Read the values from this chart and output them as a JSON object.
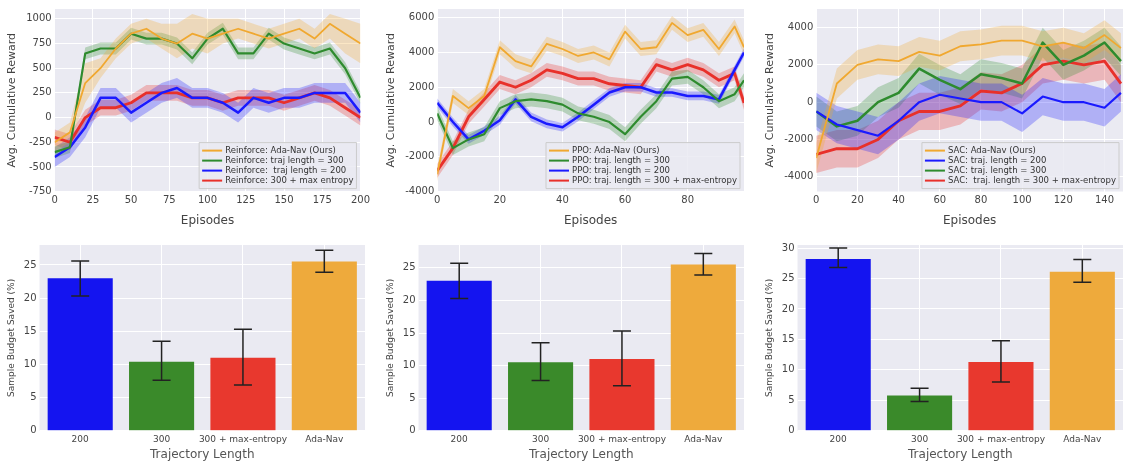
{
  "chart_data": [
    {
      "type": "line",
      "xlabel": "Episodes",
      "ylabel": "Avg. Cumulative Reward",
      "x": [
        0,
        10,
        20,
        30,
        40,
        50,
        60,
        70,
        80,
        90,
        100,
        110,
        120,
        130,
        140,
        150,
        160,
        170,
        180,
        190,
        200
      ],
      "xlim": [
        0,
        200
      ],
      "xticks": [
        0,
        25,
        50,
        75,
        100,
        125,
        150,
        175,
        200
      ],
      "ylim": [
        -750,
        1100
      ],
      "yticks": [
        -750,
        -500,
        -250,
        0,
        250,
        500,
        750,
        1000
      ],
      "grid": true,
      "legend": "bottom right",
      "series": [
        {
          "name": "Reinforce: Ada-Nav (Ours)",
          "color": "#f0a830",
          "values": [
            -250,
            -150,
            350,
            500,
            700,
            850,
            900,
            800,
            750,
            850,
            800,
            850,
            900,
            850,
            800,
            850,
            900,
            800,
            950,
            850,
            750
          ],
          "lower": [
            -350,
            -250,
            150,
            400,
            600,
            750,
            800,
            700,
            600,
            700,
            650,
            750,
            800,
            750,
            700,
            750,
            800,
            700,
            800,
            650,
            550
          ],
          "upper": [
            -150,
            -50,
            550,
            600,
            800,
            950,
            1000,
            950,
            950,
            1050,
            1000,
            1000,
            1000,
            950,
            900,
            950,
            1000,
            900,
            1050,
            1000,
            950
          ]
        },
        {
          "name": "Reinforce: traj length = 300",
          "color": "#2e8b2e",
          "values": [
            -350,
            -300,
            650,
            700,
            700,
            850,
            800,
            800,
            750,
            600,
            800,
            900,
            650,
            650,
            850,
            750,
            700,
            650,
            700,
            500,
            200
          ],
          "lower": [
            -410,
            -360,
            590,
            640,
            640,
            790,
            740,
            740,
            690,
            540,
            740,
            840,
            590,
            590,
            790,
            690,
            640,
            590,
            640,
            440,
            140
          ],
          "upper": [
            -290,
            -240,
            710,
            760,
            760,
            910,
            860,
            860,
            810,
            660,
            860,
            960,
            710,
            710,
            910,
            810,
            760,
            710,
            760,
            560,
            260
          ]
        },
        {
          "name": "Reinforce:  traj length = 200",
          "color": "#1a1aff",
          "values": [
            -400,
            -300,
            -100,
            200,
            200,
            50,
            150,
            250,
            300,
            200,
            200,
            150,
            50,
            200,
            150,
            200,
            200,
            250,
            250,
            250,
            50
          ],
          "lower": [
            -500,
            -400,
            -200,
            100,
            100,
            -50,
            50,
            150,
            200,
            100,
            100,
            50,
            -50,
            100,
            50,
            100,
            100,
            150,
            150,
            150,
            -50
          ],
          "upper": [
            -300,
            -200,
            0,
            300,
            300,
            150,
            250,
            350,
            400,
            300,
            300,
            250,
            150,
            300,
            250,
            300,
            300,
            350,
            350,
            350,
            150
          ]
        },
        {
          "name": "Reinforce: 300 + max entropy",
          "color": "#e8302a",
          "values": [
            -200,
            -250,
            0,
            100,
            100,
            150,
            250,
            250,
            250,
            200,
            200,
            150,
            200,
            200,
            200,
            150,
            200,
            250,
            200,
            100,
            0
          ],
          "lower": [
            -280,
            -330,
            -80,
            20,
            20,
            70,
            170,
            170,
            170,
            120,
            120,
            70,
            120,
            120,
            120,
            70,
            120,
            170,
            120,
            20,
            -80
          ],
          "upper": [
            -120,
            -170,
            80,
            180,
            180,
            230,
            330,
            330,
            330,
            280,
            280,
            230,
            280,
            280,
            280,
            230,
            280,
            330,
            280,
            180,
            80
          ]
        }
      ]
    },
    {
      "type": "line",
      "xlabel": "Episodes",
      "ylabel": "Avg. Cumulative Reward",
      "x": [
        0,
        5,
        10,
        15,
        20,
        25,
        30,
        35,
        40,
        45,
        50,
        55,
        60,
        65,
        70,
        75,
        80,
        85,
        90,
        95,
        98
      ],
      "xlim": [
        0,
        98
      ],
      "xticks": [
        0,
        20,
        40,
        60,
        80
      ],
      "ylim": [
        -4000,
        6500
      ],
      "yticks": [
        -4000,
        -2000,
        0,
        2000,
        4000,
        6000
      ],
      "grid": true,
      "legend": "bottom right",
      "series": [
        {
          "name": "PPO: Ada-Nav (Ours)",
          "color": "#f0a830",
          "values": [
            -3000,
            1500,
            800,
            1500,
            4300,
            3500,
            3200,
            4500,
            4200,
            3800,
            4000,
            3600,
            5200,
            4200,
            4300,
            5700,
            5000,
            5300,
            4200,
            5500,
            4300
          ],
          "lower": [
            -3400,
            1100,
            400,
            1100,
            3900,
            3100,
            2800,
            4100,
            3800,
            3400,
            3600,
            3200,
            4800,
            3800,
            3900,
            5300,
            4600,
            4900,
            3800,
            5100,
            3900
          ],
          "upper": [
            -2600,
            1900,
            1200,
            1900,
            4700,
            3900,
            3600,
            4900,
            4600,
            4200,
            4400,
            4000,
            5600,
            4600,
            4700,
            6100,
            5400,
            5700,
            4600,
            5900,
            4700
          ]
        },
        {
          "name": "PPO: traj. length = 300",
          "color": "#2e8b2e",
          "values": [
            500,
            -1500,
            -1000,
            -700,
            800,
            1200,
            1300,
            1200,
            1000,
            500,
            300,
            0,
            -700,
            300,
            1200,
            2500,
            2600,
            2000,
            1200,
            1600,
            2400
          ],
          "lower": [
            100,
            -1900,
            -1400,
            -1100,
            400,
            800,
            900,
            800,
            600,
            100,
            -100,
            -400,
            -1100,
            -100,
            800,
            2100,
            2200,
            1600,
            800,
            1200,
            2000
          ],
          "upper": [
            900,
            -1100,
            -600,
            -300,
            1200,
            1600,
            1700,
            1600,
            1400,
            900,
            700,
            400,
            -300,
            700,
            1600,
            2900,
            3000,
            2400,
            1600,
            2000,
            2800
          ]
        },
        {
          "name": "PPO: traj. length = 200",
          "color": "#1a1aff",
          "values": [
            1100,
            0,
            -1000,
            -500,
            100,
            1300,
            300,
            -100,
            -300,
            300,
            1000,
            1700,
            2000,
            2000,
            1700,
            1700,
            1500,
            1500,
            1300,
            3000,
            4000
          ],
          "lower": [
            850,
            -250,
            -1250,
            -750,
            -150,
            1050,
            50,
            -350,
            -550,
            50,
            750,
            1450,
            1750,
            1750,
            1450,
            1450,
            1250,
            1250,
            1050,
            2750,
            3750
          ],
          "upper": [
            1350,
            250,
            -750,
            -250,
            350,
            1550,
            550,
            150,
            -50,
            550,
            1250,
            1950,
            2250,
            2250,
            1950,
            1950,
            1750,
            1750,
            1550,
            3250,
            4250
          ]
        },
        {
          "name": "PPO: traj. length = 300 + max-entropy",
          "color": "#e8302a",
          "values": [
            -2800,
            -1500,
            300,
            1300,
            2300,
            2000,
            2400,
            3000,
            2800,
            2500,
            2500,
            2200,
            2100,
            2000,
            3300,
            3000,
            3300,
            3000,
            2400,
            2800,
            1100
          ],
          "lower": [
            -3200,
            -1900,
            -100,
            900,
            1900,
            1600,
            2000,
            2600,
            2400,
            2100,
            2100,
            1800,
            1700,
            1600,
            2900,
            2600,
            2900,
            2600,
            2000,
            2400,
            700
          ],
          "upper": [
            -2400,
            -1100,
            700,
            1700,
            2700,
            2400,
            2800,
            3400,
            3200,
            2900,
            2900,
            2600,
            2500,
            2400,
            3700,
            3400,
            3700,
            3400,
            2800,
            3200,
            1500
          ]
        }
      ]
    },
    {
      "type": "line",
      "xlabel": "Episodes",
      "ylabel": "Avg. Cumulative Reward",
      "x": [
        0,
        10,
        20,
        30,
        40,
        50,
        60,
        70,
        80,
        90,
        100,
        110,
        120,
        130,
        140,
        148
      ],
      "xlim": [
        0,
        149
      ],
      "xticks": [
        0,
        20,
        40,
        60,
        80,
        100,
        120,
        140
      ],
      "ylim": [
        -4800,
        5000
      ],
      "yticks": [
        -4000,
        -2000,
        0,
        2000,
        4000
      ],
      "grid": true,
      "legend": "bottom right",
      "series": [
        {
          "name": "SAC: Ada-Nav (Ours)",
          "color": "#f0a830",
          "values": [
            -3000,
            1000,
            2000,
            2300,
            2200,
            2700,
            2500,
            3000,
            3100,
            3300,
            3300,
            3000,
            3200,
            2900,
            3600,
            2900
          ],
          "lower": [
            -3800,
            200,
            1200,
            1500,
            1400,
            1900,
            1700,
            2200,
            2300,
            2500,
            2500,
            2200,
            2400,
            2100,
            2800,
            2100
          ],
          "upper": [
            -2200,
            1800,
            2800,
            3100,
            3000,
            3500,
            3300,
            3800,
            3900,
            4100,
            4100,
            3800,
            4000,
            3700,
            4400,
            3700
          ]
        },
        {
          "name": "SAC: traj. length = 200",
          "color": "#1a1aff",
          "values": [
            -500,
            -1200,
            -1500,
            -1800,
            -1000,
            0,
            400,
            200,
            0,
            0,
            -600,
            300,
            0,
            0,
            -300,
            500
          ],
          "lower": [
            -1500,
            -2200,
            -2500,
            -2800,
            -2000,
            -1000,
            -600,
            -800,
            -1000,
            -1000,
            -1600,
            -700,
            -1000,
            -1000,
            -1300,
            -500
          ],
          "upper": [
            500,
            -200,
            -500,
            -800,
            0,
            1000,
            1400,
            1200,
            1000,
            1000,
            400,
            1300,
            1000,
            1000,
            700,
            1500
          ]
        },
        {
          "name": "SAC: traj. length = 300",
          "color": "#2e8b2e",
          "values": [
            -500,
            -1300,
            -1000,
            0,
            500,
            1800,
            1200,
            700,
            1500,
            1300,
            1000,
            3200,
            2000,
            2500,
            3200,
            2200
          ],
          "lower": [
            -1300,
            -2100,
            -1800,
            -800,
            -300,
            1000,
            400,
            -100,
            700,
            500,
            200,
            2400,
            1200,
            1700,
            2400,
            1400
          ],
          "upper": [
            300,
            -500,
            -200,
            800,
            1300,
            2600,
            2000,
            1500,
            2300,
            2100,
            1800,
            4000,
            2800,
            3300,
            4000,
            3000
          ]
        },
        {
          "name": "SAC:  traj. length = 300 + max-entropy",
          "color": "#e8302a",
          "values": [
            -2800,
            -2500,
            -2500,
            -2000,
            -1000,
            -500,
            -500,
            -200,
            600,
            500,
            1000,
            2000,
            2200,
            2000,
            2200,
            1000
          ],
          "lower": [
            -3800,
            -3500,
            -3500,
            -3000,
            -2000,
            -1500,
            -1500,
            -1200,
            -400,
            -500,
            0,
            1000,
            1200,
            1000,
            1200,
            0
          ],
          "upper": [
            -1800,
            -1500,
            -1500,
            -1000,
            0,
            500,
            500,
            800,
            1600,
            1500,
            2000,
            3000,
            3200,
            3000,
            3200,
            2000
          ]
        }
      ]
    },
    {
      "type": "bar",
      "xlabel": "Trajectory Length",
      "ylabel": "Sample Budget Saved (%)",
      "categories": [
        "200",
        "300",
        "300 + max-entropy",
        "Ada-Nav"
      ],
      "values": [
        23,
        10.4,
        11,
        25.5
      ],
      "errors": [
        [
          20.3,
          25.6
        ],
        [
          7.6,
          13.5
        ],
        [
          6.9,
          15.3
        ],
        [
          23.9,
          27.2
        ]
      ],
      "colors": [
        "#1414f0",
        "#3a8a2a",
        "#e8382e",
        "#eeaa3c"
      ],
      "ylim": [
        0,
        28
      ],
      "yticks": [
        0,
        5,
        10,
        15,
        20,
        25
      ],
      "grid": true
    },
    {
      "type": "bar",
      "xlabel": "Trajectory Length",
      "ylabel": "Sample Budget Saved (%)",
      "categories": [
        "200",
        "300",
        "300 + max-entropy",
        "Ada-Nav"
      ],
      "values": [
        23,
        10.5,
        11,
        25.5
      ],
      "errors": [
        [
          20.3,
          25.7
        ],
        [
          7.7,
          13.5
        ],
        [
          6.9,
          15.3
        ],
        [
          23.9,
          27.2
        ]
      ],
      "colors": [
        "#1414f0",
        "#3a8a2a",
        "#e8382e",
        "#eeaa3c"
      ],
      "ylim": [
        0,
        28.5
      ],
      "yticks": [
        0,
        5,
        10,
        15,
        20,
        25
      ],
      "grid": true
    },
    {
      "type": "bar",
      "xlabel": "Trajectory Length",
      "ylabel": "Sample Budget Saved (%)",
      "categories": [
        "200",
        "300",
        "300 + max-entropy",
        "Ada-Nav"
      ],
      "values": [
        28.2,
        5.8,
        11.3,
        26.1
      ],
      "errors": [
        [
          26.8,
          30
        ],
        [
          4.8,
          7
        ],
        [
          8,
          14.8
        ],
        [
          24.4,
          28.1
        ]
      ],
      "colors": [
        "#1414f0",
        "#3a8a2a",
        "#e8382e",
        "#eeaa3c"
      ],
      "ylim": [
        0,
        30.5
      ],
      "yticks": [
        0,
        5,
        10,
        15,
        20,
        25,
        30
      ],
      "grid": true
    }
  ]
}
